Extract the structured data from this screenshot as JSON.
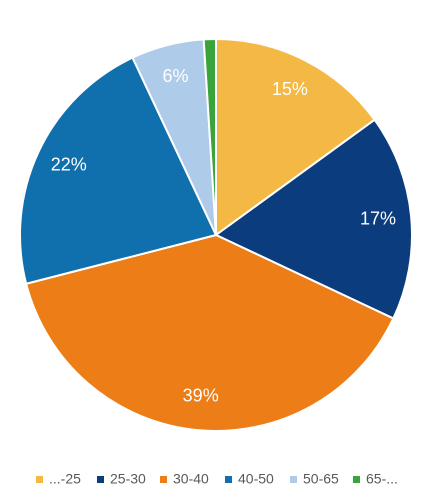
{
  "chart_data": {
    "type": "pie",
    "categories": [
      "...-25",
      "25-30",
      "30-40",
      "40-50",
      "50-65",
      "65-..."
    ],
    "values": [
      15,
      17,
      39,
      22,
      6,
      1
    ],
    "value_labels": [
      "15%",
      "17%",
      "39%",
      "22%",
      "6%",
      null
    ],
    "colors": [
      "#f4b844",
      "#0b3c7d",
      "#ed7d16",
      "#106fad",
      "#aecbe9",
      "#3aa33a"
    ],
    "legend": "bottom"
  }
}
